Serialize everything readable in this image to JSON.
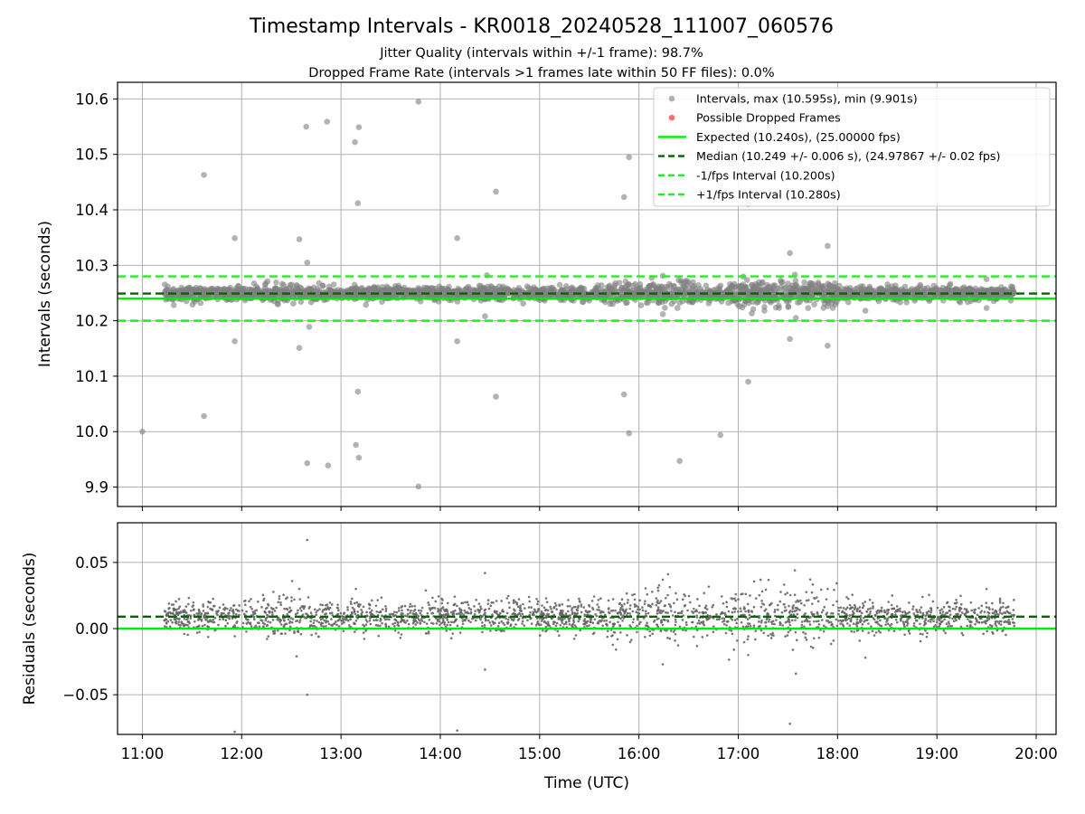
{
  "figure": {
    "title": "Timestamp Intervals - KR0018_20240528_111007_060576",
    "subtitle_lines": [
      "Jitter Quality (intervals within +/-1 frame): 98.7%",
      "Dropped Frame Rate (intervals >1 frames late within 50 FF files): 0.0%"
    ]
  },
  "colors": {
    "points": "#808080",
    "residual_points": "#666666",
    "dropped": "#ff5555",
    "expected": "#00ee00",
    "median": "#006400",
    "fps_band": "#22ee22",
    "grid": "#b0b0b0"
  },
  "chart_data": [
    {
      "type": "scatter",
      "name": "intervals",
      "ylabel": "Intervals (seconds)",
      "xlabel": "",
      "xlim": [
        10.75,
        20.2
      ],
      "ylim": [
        9.865,
        10.63
      ],
      "x_ticks": [
        11,
        12,
        13,
        14,
        15,
        16,
        17,
        18,
        19,
        20
      ],
      "y_ticks": [
        {
          "value": 9.9,
          "label": "9.9"
        },
        {
          "value": 10.0,
          "label": "10.0"
        },
        {
          "value": 10.1,
          "label": "10.1"
        },
        {
          "value": 10.2,
          "label": "10.2"
        },
        {
          "value": 10.3,
          "label": "10.3"
        },
        {
          "value": 10.4,
          "label": "10.4"
        },
        {
          "value": 10.5,
          "label": "10.5"
        },
        {
          "value": 10.6,
          "label": "10.6"
        }
      ],
      "grid": true,
      "legend_position": "top-right",
      "legend": [
        {
          "label": "Intervals, max (10.595s), min (9.901s)",
          "kind": "marker",
          "color_key": "points"
        },
        {
          "label": "Possible Dropped Frames",
          "kind": "marker",
          "color_key": "dropped"
        },
        {
          "label": "Expected (10.240s), (25.00000 fps)",
          "kind": "solid",
          "color_key": "expected"
        },
        {
          "label": "Median (10.249 +/- 0.006 s), (24.97867 +/- 0.02 fps)",
          "kind": "dashed",
          "color_key": "median"
        },
        {
          "label": "-1/fps Interval (10.200s)",
          "kind": "dashed",
          "color_key": "fps_band"
        },
        {
          "label": "+1/fps Interval (10.280s)",
          "kind": "dashed",
          "color_key": "fps_band"
        }
      ],
      "reference_lines": {
        "expected": 10.24,
        "median": 10.249,
        "minus_fps": 10.2,
        "plus_fps": 10.28
      },
      "band": {
        "x_start": 11.22,
        "x_end": 19.78,
        "center": 10.249,
        "spread": 0.006
      },
      "outliers": [
        [
          11.62,
          10.463
        ],
        [
          11.62,
          10.028
        ],
        [
          11.93,
          10.349
        ],
        [
          11.93,
          10.163
        ],
        [
          12.58,
          10.347
        ],
        [
          12.58,
          10.151
        ],
        [
          12.66,
          10.305
        ],
        [
          12.65,
          10.55
        ],
        [
          12.66,
          9.943
        ],
        [
          12.68,
          10.189
        ],
        [
          12.86,
          10.559
        ],
        [
          12.87,
          9.939
        ],
        [
          13.14,
          10.522
        ],
        [
          13.18,
          10.549
        ],
        [
          13.17,
          10.412
        ],
        [
          13.17,
          10.072
        ],
        [
          13.15,
          9.976
        ],
        [
          13.18,
          9.953
        ],
        [
          13.78,
          10.595
        ],
        [
          13.78,
          9.901
        ],
        [
          14.17,
          10.349
        ],
        [
          14.17,
          10.163
        ],
        [
          14.56,
          10.433
        ],
        [
          14.56,
          10.063
        ],
        [
          14.47,
          10.282
        ],
        [
          14.45,
          10.208
        ],
        [
          15.85,
          10.423
        ],
        [
          15.85,
          10.067
        ],
        [
          15.9,
          10.495
        ],
        [
          15.9,
          9.997
        ],
        [
          16.24,
          10.281
        ],
        [
          16.24,
          10.212
        ],
        [
          16.41,
          9.947
        ],
        [
          16.82,
          9.994
        ],
        [
          17.1,
          10.41
        ],
        [
          17.1,
          10.09
        ],
        [
          17.52,
          10.322
        ],
        [
          17.52,
          10.167
        ],
        [
          17.57,
          10.283
        ],
        [
          17.58,
          10.205
        ],
        [
          17.9,
          10.335
        ],
        [
          17.9,
          10.155
        ],
        [
          18.55,
          10.262
        ],
        [
          19.5,
          10.275
        ],
        [
          19.5,
          10.223
        ],
        [
          18.28,
          10.218
        ],
        [
          11.0,
          10.0
        ]
      ]
    },
    {
      "type": "scatter",
      "name": "residuals",
      "ylabel": "Residuals (seconds)",
      "xlabel": "Time (UTC)",
      "xlim": [
        10.75,
        20.2
      ],
      "ylim": [
        -0.08,
        0.08
      ],
      "x_ticks": [
        {
          "value": 11,
          "label": "11:00"
        },
        {
          "value": 12,
          "label": "12:00"
        },
        {
          "value": 13,
          "label": "13:00"
        },
        {
          "value": 14,
          "label": "14:00"
        },
        {
          "value": 15,
          "label": "15:00"
        },
        {
          "value": 16,
          "label": "16:00"
        },
        {
          "value": 17,
          "label": "17:00"
        },
        {
          "value": 18,
          "label": "18:00"
        },
        {
          "value": 19,
          "label": "19:00"
        },
        {
          "value": 20,
          "label": "20:00"
        }
      ],
      "y_ticks": [
        {
          "value": 0.05,
          "label": "0.05"
        },
        {
          "value": 0.0,
          "label": "0.00"
        },
        {
          "value": -0.05,
          "label": "−0.05"
        }
      ],
      "grid": true,
      "reference_lines": {
        "expected": 0.0,
        "median": 0.009
      },
      "band": {
        "x_start": 11.22,
        "x_end": 19.78,
        "center": 0.009,
        "spread": 0.006
      },
      "outliers": [
        [
          12.66,
          0.067
        ],
        [
          12.66,
          -0.05
        ],
        [
          11.93,
          -0.078
        ],
        [
          14.17,
          -0.077
        ],
        [
          14.45,
          0.042
        ],
        [
          14.45,
          -0.031
        ],
        [
          16.24,
          0.037
        ],
        [
          16.24,
          -0.027
        ],
        [
          17.57,
          0.044
        ],
        [
          17.52,
          -0.072
        ],
        [
          17.58,
          -0.034
        ],
        [
          17.1,
          -0.02
        ],
        [
          13.15,
          0.03
        ],
        [
          12.58,
          0.03
        ],
        [
          17.9,
          0.03
        ],
        [
          18.28,
          -0.022
        ],
        [
          19.5,
          0.03
        ],
        [
          18.55,
          0.025
        ]
      ]
    }
  ]
}
